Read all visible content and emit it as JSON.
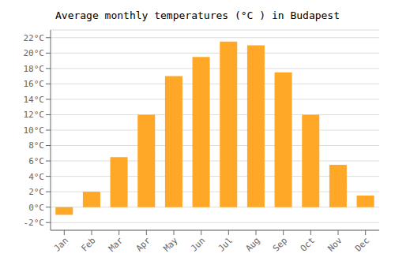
{
  "chart_data": {
    "type": "bar",
    "title": "Average monthly temperatures (°C ) in Budapest",
    "categories": [
      "Jan",
      "Feb",
      "Mar",
      "Apr",
      "May",
      "Jun",
      "Jul",
      "Aug",
      "Sep",
      "Oct",
      "Nov",
      "Dec"
    ],
    "values": [
      -1,
      2,
      6.5,
      12,
      17,
      19.5,
      21.5,
      21,
      17.5,
      12,
      5.5,
      1.5
    ],
    "color": "#FFA726",
    "ylim": [
      -3,
      23
    ],
    "yticks": [
      {
        "value": -2,
        "label": "-2°C"
      },
      {
        "value": 0,
        "label": "0°C"
      },
      {
        "value": 2,
        "label": "2°C"
      },
      {
        "value": 4,
        "label": "4°C"
      },
      {
        "value": 6,
        "label": "6°C"
      },
      {
        "value": 8,
        "label": "8°C"
      },
      {
        "value": 10,
        "label": "10°C"
      },
      {
        "value": 12,
        "label": "12°C"
      },
      {
        "value": 14,
        "label": "14°C"
      },
      {
        "value": 16,
        "label": "16°C"
      },
      {
        "value": 18,
        "label": "18°C"
      },
      {
        "value": 20,
        "label": "20°C"
      },
      {
        "value": 22,
        "label": "22°C"
      }
    ],
    "grid": true
  }
}
